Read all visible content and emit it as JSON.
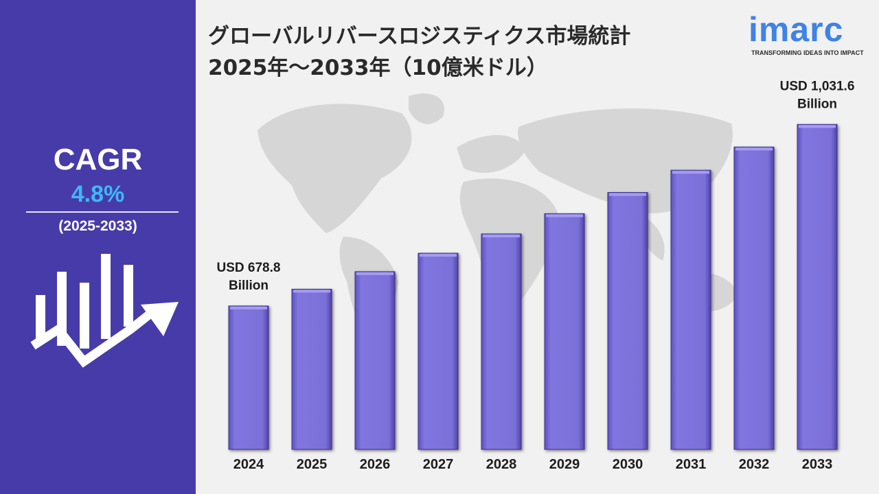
{
  "sidebar": {
    "cagr_label": "CAGR",
    "cagr_value": "4.8%",
    "cagr_period": "(2025-2033)"
  },
  "header": {
    "title_line1": "グローバルリバースロジスティクス市場統計",
    "title_line2": "2025年～2033年（10億米ドル）"
  },
  "logo": {
    "wordmark": "imarc",
    "tagline": "TRANSFORMING IDEAS INTO IMPACT"
  },
  "colors": {
    "sidebar_bg": "#473baa",
    "bar_fill": "#7b70d8",
    "cagr_value": "#3fb8f4",
    "logo_blue": "#3f82e8",
    "background": "#f1f1f1"
  },
  "chart_data": {
    "type": "bar",
    "categories": [
      "2024",
      "2025",
      "2026",
      "2027",
      "2028",
      "2029",
      "2030",
      "2031",
      "2032",
      "2033"
    ],
    "values": [
      678.8,
      711.4,
      745.5,
      781.3,
      818.8,
      858.1,
      899.3,
      942.5,
      987.7,
      1031.6
    ],
    "ylim": [
      400,
      1100
    ],
    "annotations": [
      {
        "category": "2024",
        "line1": "USD 678.8",
        "line2": "Billion"
      },
      {
        "category": "2033",
        "line1": "USD 1,031.6",
        "line2": "Billion"
      }
    ],
    "grid": false,
    "legend": "none"
  }
}
